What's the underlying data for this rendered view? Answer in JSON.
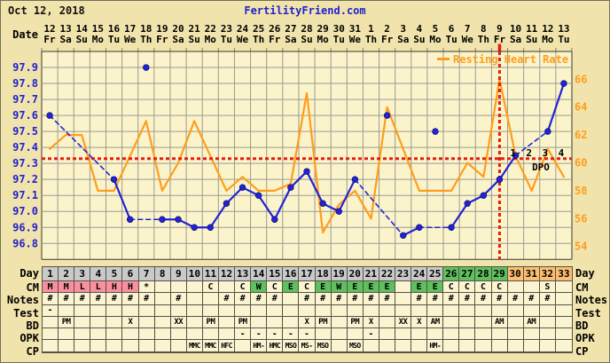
{
  "header": {
    "date": "Oct 12, 2018",
    "site": "FertilityFriend.com"
  },
  "axes": {
    "date_label": "Date",
    "temp_ticks": [
      "97.9",
      "97.8",
      "97.7",
      "97.6",
      "97.5",
      "97.4",
      "97.3",
      "97.2",
      "97.1",
      "97.0",
      "96.9",
      "96.8"
    ],
    "hr_ticks": [
      "66",
      "64",
      "62",
      "60",
      "58",
      "56",
      "54"
    ],
    "dpo_label": "DPO",
    "temp_color": "#2222cc",
    "hr_color": "#ff9d1c"
  },
  "legend": {
    "resting_heart_rate": "Resting Heart Rate"
  },
  "rows": {
    "left_labels": [
      "Day",
      "CM",
      "Notes",
      "Test",
      "BD",
      "OPK",
      "CP"
    ],
    "right_labels": [
      "Day",
      "CM",
      "Notes",
      "Test",
      "BD",
      "OPK",
      "CP"
    ]
  },
  "colors": {
    "page_bg": "#f1e3ac",
    "plot_bg": "#fbf4ca",
    "cell_bg": "#fbf4d0",
    "grid": "#9a9a92",
    "plot_border": "#3a3a30",
    "table_border": "#55524a",
    "temp_line": "#2323d6",
    "hr_line": "#ff9d1c",
    "red_line": "#e41e10",
    "day_gray": "#c9c9c9",
    "green": "#5ec05e",
    "day_orange": "#fbbd70",
    "cm_pink": "#f9909f"
  },
  "chart_data": {
    "type": "line",
    "title": "BBT and Resting Heart Rate fertility chart",
    "x_cycle_days": [
      1,
      2,
      3,
      4,
      5,
      6,
      7,
      8,
      9,
      10,
      11,
      12,
      13,
      14,
      15,
      16,
      17,
      18,
      19,
      20,
      21,
      22,
      23,
      24,
      25,
      26,
      27,
      28,
      29,
      30,
      31,
      32,
      33
    ],
    "x_dates": [
      "12",
      "13",
      "14",
      "15",
      "16",
      "17",
      "18",
      "19",
      "20",
      "21",
      "22",
      "23",
      "24",
      "25",
      "26",
      "27",
      "28",
      "29",
      "30",
      "31",
      "1",
      "2",
      "3",
      "4",
      "5",
      "6",
      "7",
      "8",
      "9",
      "10",
      "11",
      "12",
      "13"
    ],
    "x_dow": [
      "Fr",
      "Sa",
      "Su",
      "Mo",
      "Tu",
      "We",
      "Th",
      "Fr",
      "Sa",
      "Su",
      "Mo",
      "Tu",
      "We",
      "Th",
      "Fr",
      "Sa",
      "Su",
      "Mo",
      "Tu",
      "We",
      "Th",
      "Fr",
      "Sa",
      "Su",
      "Mo",
      "Tu",
      "We",
      "Th",
      "Fr",
      "Sa",
      "Su",
      "Mo",
      "Tu"
    ],
    "temp_axis_range": [
      96.7,
      98.0
    ],
    "hr_axis_ticks": [
      66,
      64,
      62,
      60,
      58,
      56,
      54
    ],
    "series": [
      {
        "name": "bbt_temperature_f",
        "color": "#2323d6",
        "values": [
          97.6,
          null,
          null,
          null,
          97.2,
          96.95,
          97.9,
          96.95,
          96.95,
          96.9,
          96.9,
          97.05,
          97.15,
          97.1,
          96.95,
          97.15,
          97.25,
          97.05,
          97.0,
          97.2,
          null,
          97.6,
          96.85,
          96.9,
          97.5,
          96.9,
          97.05,
          97.1,
          97.2,
          97.35,
          null,
          97.5,
          97.8
        ],
        "discarded_days": [
          7,
          22,
          25
        ]
      },
      {
        "name": "resting_heart_rate_bpm",
        "color": "#ff9d1c",
        "values": [
          61,
          62,
          62,
          58,
          58,
          60.5,
          63,
          58,
          60,
          63,
          60.5,
          58,
          59,
          58,
          58,
          58.5,
          65,
          55,
          57,
          58,
          56,
          64,
          61,
          58,
          58,
          58,
          60,
          59,
          66,
          60.5,
          58,
          61,
          59
        ]
      }
    ],
    "coverline_temp": 97.33,
    "ovulation_cycle_day": 29,
    "dpo_labels": {
      "numbers": [
        "1",
        "2",
        "3",
        "4"
      ],
      "at_days": [
        30,
        31,
        32,
        33
      ],
      "caption": "DPO"
    }
  },
  "table": {
    "day_numbers": [
      "1",
      "2",
      "3",
      "4",
      "5",
      "6",
      "7",
      "8",
      "9",
      "10",
      "11",
      "12",
      "13",
      "14",
      "15",
      "16",
      "17",
      "18",
      "19",
      "20",
      "21",
      "22",
      "23",
      "24",
      "25",
      "26",
      "27",
      "28",
      "29",
      "30",
      "31",
      "32",
      "33"
    ],
    "day_green_days": [
      26,
      27,
      28,
      29
    ],
    "day_orange_days": [
      30,
      31,
      32,
      33
    ],
    "cm": [
      "M",
      "M",
      "L",
      "L",
      "H",
      "H",
      "*",
      "",
      "",
      "",
      "C",
      "",
      "C",
      "W",
      "C",
      "E",
      "C",
      "E",
      "W",
      "E",
      "E",
      "E",
      "",
      "E",
      "E",
      "C",
      "C",
      "C",
      "C",
      "",
      "",
      "S",
      ""
    ],
    "cm_pink_letters": [
      "M",
      "L",
      "H"
    ],
    "cm_green_letters": [
      "W",
      "E"
    ],
    "notes": [
      "#",
      "#",
      "#",
      "#",
      "#",
      "#",
      "#",
      "",
      "#",
      "",
      "",
      "#",
      "#",
      "#",
      "#",
      "",
      "#",
      "#",
      "#",
      "#",
      "#",
      "#",
      "",
      "#",
      "#",
      "#",
      "#",
      "#",
      "#",
      "#",
      "#",
      "#",
      ""
    ],
    "test": [
      "-",
      "",
      "",
      "",
      "",
      "",
      "",
      "",
      "",
      "",
      "",
      "",
      "",
      "",
      "",
      "",
      "",
      "",
      "",
      "",
      "",
      "",
      "",
      "",
      "",
      "",
      "",
      "",
      "",
      "",
      "",
      "",
      ""
    ],
    "bd": [
      "",
      "PM",
      "",
      "",
      "",
      "X",
      "",
      "",
      "XX",
      "",
      "PM",
      "",
      "PM",
      "",
      "",
      "",
      "X",
      "PM",
      "",
      "PM",
      "X",
      "",
      "XX",
      "X",
      "AM",
      "",
      "",
      "",
      "AM",
      "",
      "AM",
      "",
      ""
    ],
    "opk": [
      "",
      "",
      "",
      "",
      "",
      "",
      "",
      "",
      "",
      "",
      "",
      "",
      "-",
      "-",
      "-",
      "-",
      "-",
      "",
      "",
      "",
      "-",
      "",
      "",
      "",
      "",
      "",
      "",
      "",
      "",
      "",
      "",
      "",
      ""
    ],
    "cp": [
      "",
      "",
      "",
      "",
      "",
      "",
      "",
      "",
      "",
      "MMC",
      "MMC",
      "HFC",
      "",
      "HM-",
      "HMC",
      "MSO",
      "MS-",
      "MSO",
      "",
      "MSO",
      "",
      "",
      "",
      "",
      "HM-",
      "",
      "",
      "",
      "",
      "",
      "",
      "",
      ""
    ]
  }
}
